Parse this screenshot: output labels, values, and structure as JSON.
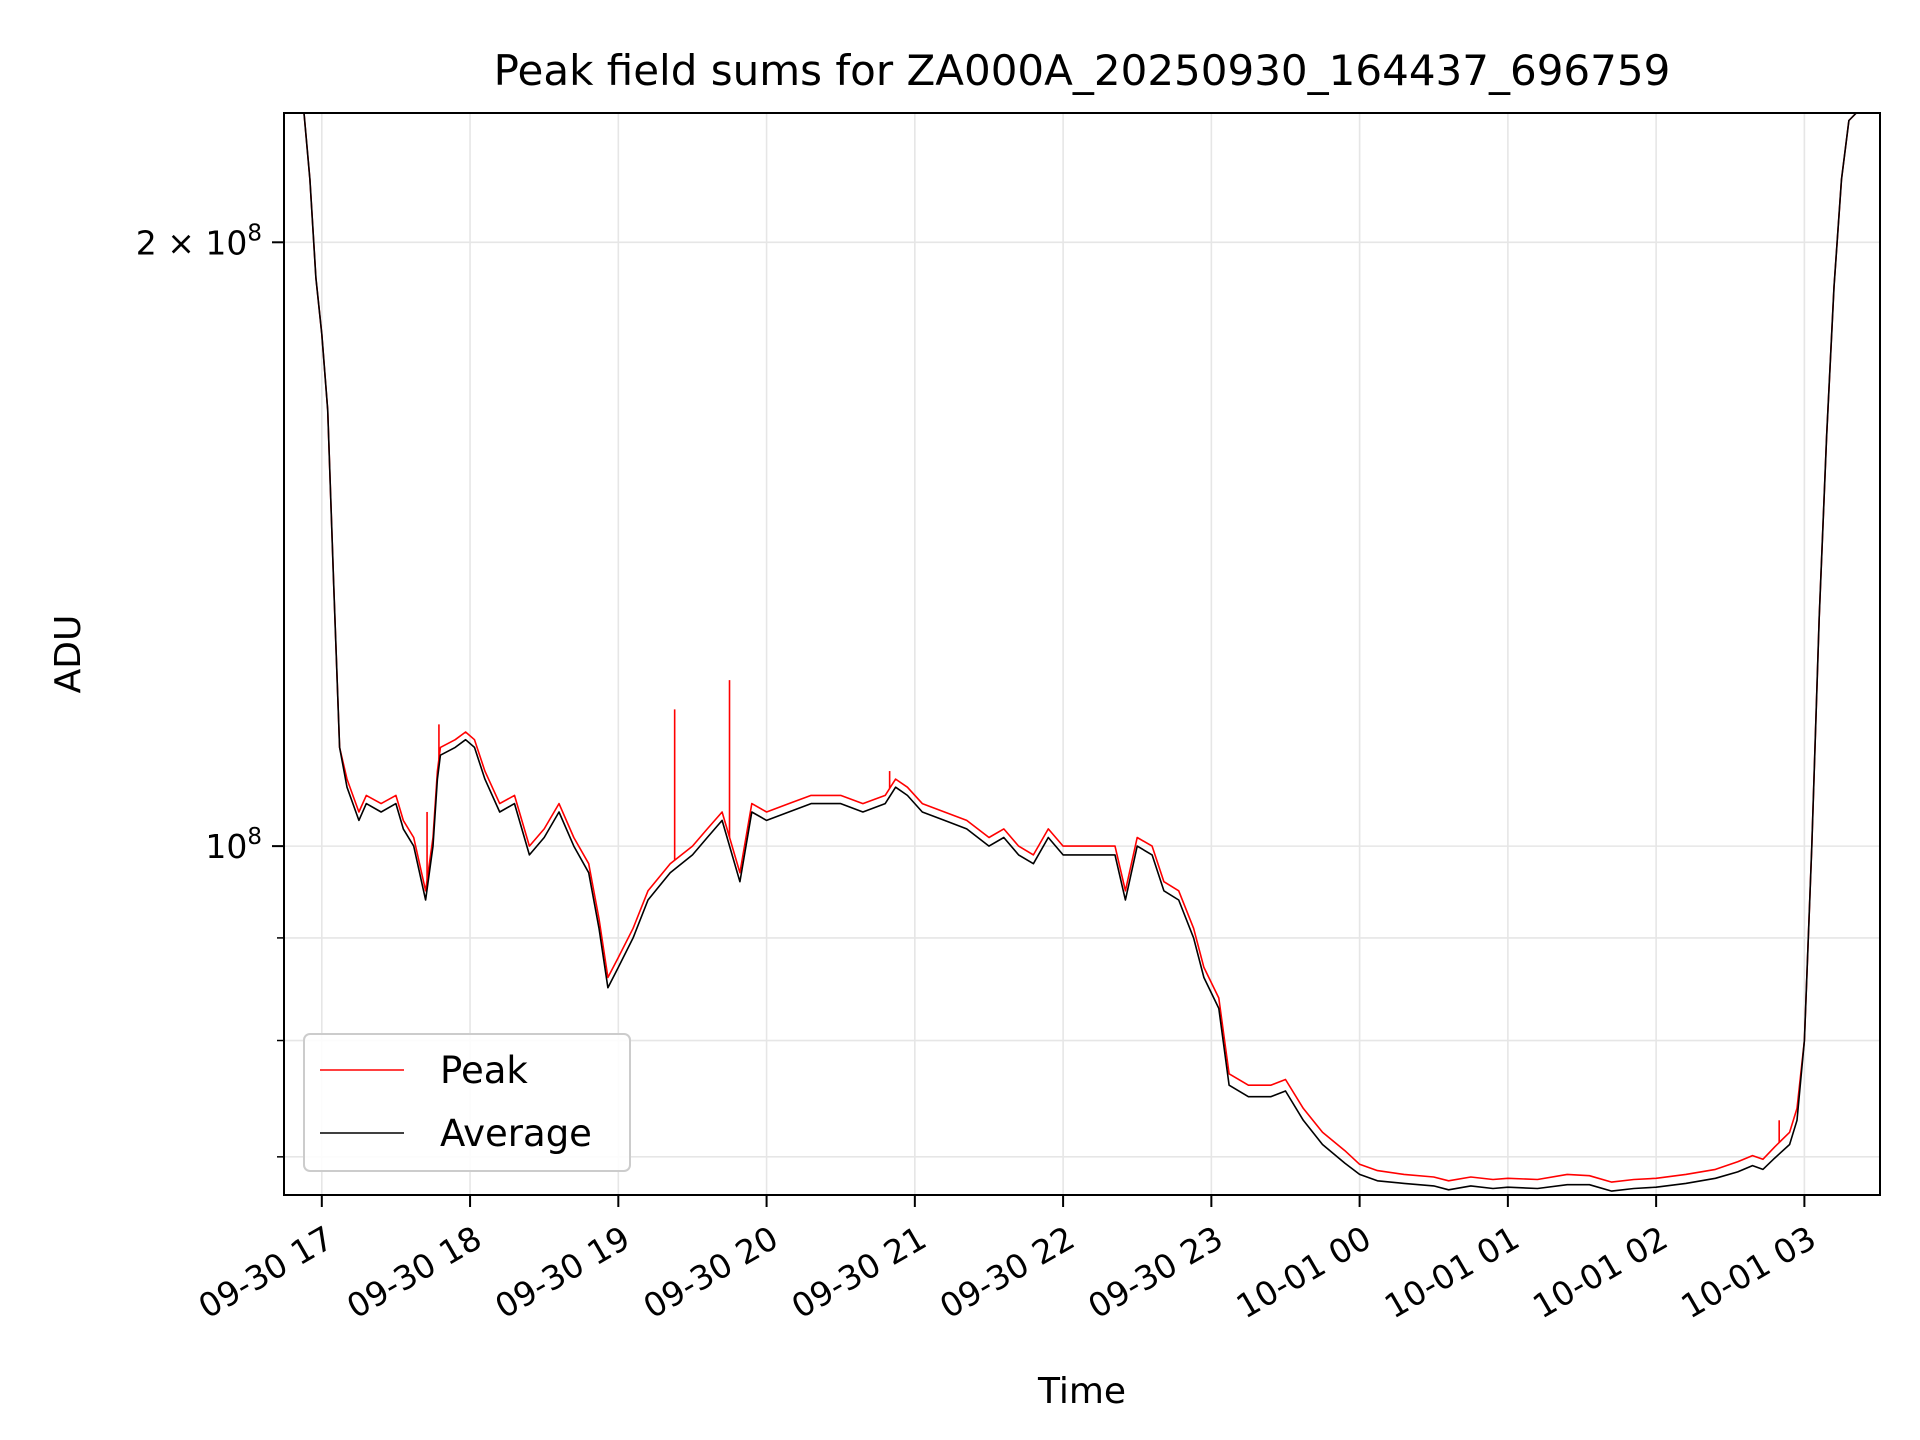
{
  "chart_data": {
    "type": "line",
    "title": "Peak field sums for ZA000A_20250930_164437_696759",
    "xlabel": "Time",
    "ylabel": "ADU",
    "yscale": "log",
    "ylim": [
      67000000,
      232000000
    ],
    "xlim_hours": [
      16.745,
      27.51
    ],
    "grid": true,
    "legend_position": "lower-left",
    "x_tick_labels": [
      "09-30 17",
      "09-30 18",
      "09-30 19",
      "09-30 20",
      "09-30 21",
      "09-30 22",
      "09-30 23",
      "10-01 00",
      "10-01 01",
      "10-01 02",
      "10-01 03"
    ],
    "x_tick_hours": [
      17,
      18,
      19,
      20,
      21,
      22,
      23,
      24,
      25,
      26,
      27
    ],
    "y_tick_labels": [
      {
        "value": 100000000,
        "base": "10",
        "exp": "8",
        "mantissa": ""
      },
      {
        "value": 200000000,
        "base": "10",
        "exp": "8",
        "mantissa": "2"
      }
    ],
    "y_minor_ticks": [
      70000000,
      80000000,
      90000000
    ],
    "series": [
      {
        "name": "Average",
        "color": "#000000",
        "points": [
          [
            16.75,
            232000000
          ],
          [
            16.88,
            232000000
          ],
          [
            16.92,
            215000000
          ],
          [
            16.96,
            192000000
          ],
          [
            17.0,
            180000000
          ],
          [
            17.04,
            165000000
          ],
          [
            17.08,
            135000000
          ],
          [
            17.12,
            112000000
          ],
          [
            17.17,
            107000000
          ],
          [
            17.25,
            103000000
          ],
          [
            17.3,
            105000000
          ],
          [
            17.4,
            104000000
          ],
          [
            17.5,
            105000000
          ],
          [
            17.55,
            102000000
          ],
          [
            17.62,
            100000000
          ],
          [
            17.7,
            94000000
          ],
          [
            17.75,
            100000000
          ],
          [
            17.78,
            108000000
          ],
          [
            17.8,
            111000000
          ],
          [
            17.9,
            112000000
          ],
          [
            17.97,
            113000000
          ],
          [
            18.03,
            112000000
          ],
          [
            18.1,
            108000000
          ],
          [
            18.2,
            104000000
          ],
          [
            18.3,
            105000000
          ],
          [
            18.4,
            99000000
          ],
          [
            18.5,
            101000000
          ],
          [
            18.6,
            104000000
          ],
          [
            18.7,
            100000000
          ],
          [
            18.8,
            97000000
          ],
          [
            18.87,
            91000000
          ],
          [
            18.93,
            85000000
          ],
          [
            19.0,
            87000000
          ],
          [
            19.1,
            90000000
          ],
          [
            19.2,
            94000000
          ],
          [
            19.35,
            97000000
          ],
          [
            19.5,
            99000000
          ],
          [
            19.6,
            101000000
          ],
          [
            19.7,
            103000000
          ],
          [
            19.82,
            96000000
          ],
          [
            19.9,
            104000000
          ],
          [
            20.0,
            103000000
          ],
          [
            20.15,
            104000000
          ],
          [
            20.3,
            105000000
          ],
          [
            20.5,
            105000000
          ],
          [
            20.65,
            104000000
          ],
          [
            20.8,
            105000000
          ],
          [
            20.87,
            107000000
          ],
          [
            20.95,
            106000000
          ],
          [
            21.05,
            104000000
          ],
          [
            21.2,
            103000000
          ],
          [
            21.35,
            102000000
          ],
          [
            21.5,
            100000000
          ],
          [
            21.6,
            101000000
          ],
          [
            21.7,
            99000000
          ],
          [
            21.8,
            98000000
          ],
          [
            21.9,
            101000000
          ],
          [
            22.0,
            99000000
          ],
          [
            22.2,
            99000000
          ],
          [
            22.35,
            99000000
          ],
          [
            22.42,
            94000000
          ],
          [
            22.5,
            100000000
          ],
          [
            22.6,
            99000000
          ],
          [
            22.68,
            95000000
          ],
          [
            22.78,
            94000000
          ],
          [
            22.88,
            90000000
          ],
          [
            22.95,
            86000000
          ],
          [
            23.05,
            83000000
          ],
          [
            23.12,
            76000000
          ],
          [
            23.25,
            75000000
          ],
          [
            23.4,
            75000000
          ],
          [
            23.5,
            75500000
          ],
          [
            23.62,
            73000000
          ],
          [
            23.75,
            71000000
          ],
          [
            23.9,
            69500000
          ],
          [
            24.0,
            68600000
          ],
          [
            24.12,
            68100000
          ],
          [
            24.3,
            67900000
          ],
          [
            24.5,
            67700000
          ],
          [
            24.6,
            67400000
          ],
          [
            24.75,
            67700000
          ],
          [
            24.9,
            67500000
          ],
          [
            25.0,
            67600000
          ],
          [
            25.2,
            67500000
          ],
          [
            25.4,
            67800000
          ],
          [
            25.55,
            67800000
          ],
          [
            25.7,
            67300000
          ],
          [
            25.85,
            67500000
          ],
          [
            26.0,
            67600000
          ],
          [
            26.2,
            67900000
          ],
          [
            26.4,
            68300000
          ],
          [
            26.55,
            68800000
          ],
          [
            26.65,
            69300000
          ],
          [
            26.72,
            69000000
          ],
          [
            26.8,
            69900000
          ],
          [
            26.9,
            71000000
          ],
          [
            26.95,
            73000000
          ],
          [
            27.0,
            80000000
          ],
          [
            27.05,
            100000000
          ],
          [
            27.1,
            130000000
          ],
          [
            27.15,
            160000000
          ],
          [
            27.2,
            190000000
          ],
          [
            27.25,
            215000000
          ],
          [
            27.3,
            230000000
          ],
          [
            27.35,
            232000000
          ],
          [
            27.5,
            232000000
          ]
        ]
      },
      {
        "name": "Peak",
        "color": "#ff0000",
        "points": [
          [
            16.75,
            232000000
          ],
          [
            16.88,
            232000000
          ],
          [
            16.92,
            215000000
          ],
          [
            16.96,
            192000000
          ],
          [
            17.0,
            180000000
          ],
          [
            17.04,
            165000000
          ],
          [
            17.08,
            135000000
          ],
          [
            17.12,
            112000000
          ],
          [
            17.17,
            108000000
          ],
          [
            17.25,
            104000000
          ],
          [
            17.3,
            106000000
          ],
          [
            17.4,
            105000000
          ],
          [
            17.5,
            106000000
          ],
          [
            17.55,
            103000000
          ],
          [
            17.62,
            101000000
          ],
          [
            17.7,
            95000000
          ],
          [
            17.75,
            101000000
          ],
          [
            17.78,
            109000000
          ],
          [
            17.8,
            112000000
          ],
          [
            17.9,
            113000000
          ],
          [
            17.97,
            114000000
          ],
          [
            18.03,
            113000000
          ],
          [
            18.1,
            109000000
          ],
          [
            18.2,
            105000000
          ],
          [
            18.3,
            106000000
          ],
          [
            18.4,
            100000000
          ],
          [
            18.5,
            102000000
          ],
          [
            18.6,
            105000000
          ],
          [
            18.7,
            101000000
          ],
          [
            18.8,
            98000000
          ],
          [
            18.87,
            92000000
          ],
          [
            18.93,
            86000000
          ],
          [
            19.0,
            88000000
          ],
          [
            19.1,
            91000000
          ],
          [
            19.2,
            95000000
          ],
          [
            19.35,
            98000000
          ],
          [
            19.5,
            100000000
          ],
          [
            19.6,
            102000000
          ],
          [
            19.7,
            104000000
          ],
          [
            19.82,
            97000000
          ],
          [
            19.9,
            105000000
          ],
          [
            20.0,
            104000000
          ],
          [
            20.15,
            105000000
          ],
          [
            20.3,
            106000000
          ],
          [
            20.5,
            106000000
          ],
          [
            20.65,
            105000000
          ],
          [
            20.8,
            106000000
          ],
          [
            20.87,
            108000000
          ],
          [
            20.95,
            107000000
          ],
          [
            21.05,
            105000000
          ],
          [
            21.2,
            104000000
          ],
          [
            21.35,
            103000000
          ],
          [
            21.5,
            101000000
          ],
          [
            21.6,
            102000000
          ],
          [
            21.7,
            100000000
          ],
          [
            21.8,
            99000000
          ],
          [
            21.9,
            102000000
          ],
          [
            22.0,
            100000000
          ],
          [
            22.2,
            100000000
          ],
          [
            22.35,
            100000000
          ],
          [
            22.42,
            95000000
          ],
          [
            22.5,
            101000000
          ],
          [
            22.6,
            100000000
          ],
          [
            22.68,
            96000000
          ],
          [
            22.78,
            95000000
          ],
          [
            22.88,
            91000000
          ],
          [
            22.95,
            87000000
          ],
          [
            23.05,
            84000000
          ],
          [
            23.12,
            77000000
          ],
          [
            23.25,
            76000000
          ],
          [
            23.4,
            76000000
          ],
          [
            23.5,
            76500000
          ],
          [
            23.62,
            74000000
          ],
          [
            23.75,
            72000000
          ],
          [
            23.9,
            70500000
          ],
          [
            24.0,
            69400000
          ],
          [
            24.12,
            68900000
          ],
          [
            24.3,
            68600000
          ],
          [
            24.5,
            68400000
          ],
          [
            24.6,
            68100000
          ],
          [
            24.75,
            68400000
          ],
          [
            24.9,
            68200000
          ],
          [
            25.0,
            68300000
          ],
          [
            25.2,
            68200000
          ],
          [
            25.4,
            68600000
          ],
          [
            25.55,
            68500000
          ],
          [
            25.7,
            68000000
          ],
          [
            25.85,
            68200000
          ],
          [
            26.0,
            68300000
          ],
          [
            26.2,
            68600000
          ],
          [
            26.4,
            69000000
          ],
          [
            26.55,
            69600000
          ],
          [
            26.65,
            70100000
          ],
          [
            26.72,
            69800000
          ],
          [
            26.8,
            70800000
          ],
          [
            26.9,
            72000000
          ],
          [
            26.95,
            74000000
          ],
          [
            27.0,
            80000000
          ],
          [
            27.05,
            100000000
          ],
          [
            27.1,
            130000000
          ],
          [
            27.15,
            160000000
          ],
          [
            27.2,
            190000000
          ],
          [
            27.25,
            215000000
          ],
          [
            27.3,
            230000000
          ],
          [
            27.35,
            232000000
          ],
          [
            27.5,
            232000000
          ]
        ],
        "spikes": [
          [
            17.71,
            104000000
          ],
          [
            17.79,
            115000000
          ],
          [
            19.38,
            117000000
          ],
          [
            19.75,
            121000000
          ],
          [
            20.83,
            109000000
          ],
          [
            26.83,
            73000000
          ]
        ]
      }
    ]
  }
}
